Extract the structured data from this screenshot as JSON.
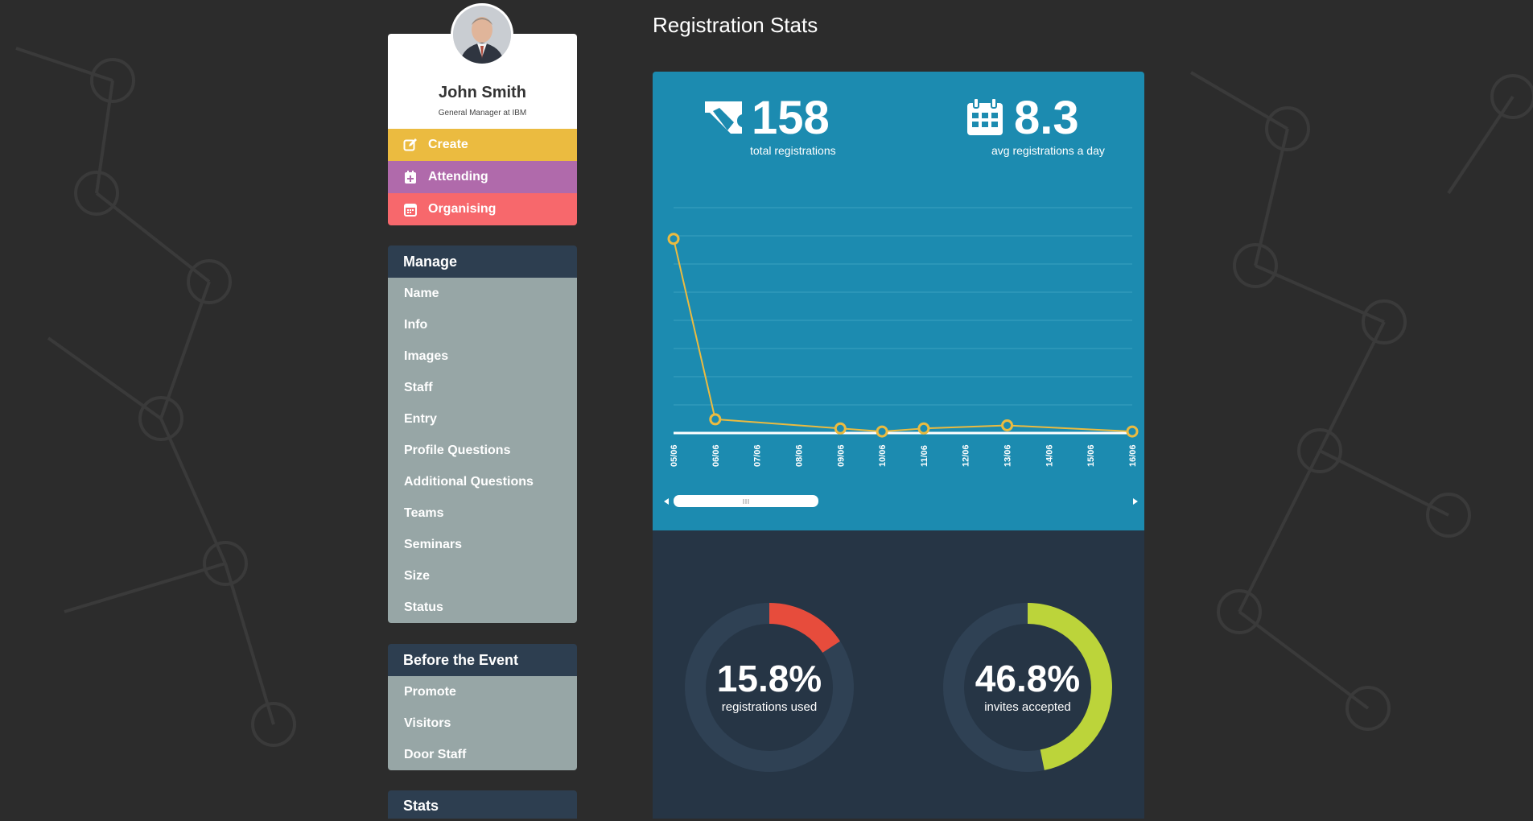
{
  "page": {
    "title": "Registration Stats"
  },
  "profile": {
    "name": "John Smith",
    "subtitle": "General Manager at IBM"
  },
  "actions": [
    {
      "label": "Create",
      "icon": "edit-icon",
      "color": "#ebbb40"
    },
    {
      "label": "Attending",
      "icon": "calendar-plus-icon",
      "color": "#b06aab"
    },
    {
      "label": "Organising",
      "icon": "calendar-icon",
      "color": "#f7686c"
    }
  ],
  "menus": {
    "manage": {
      "title": "Manage",
      "items": [
        "Name",
        "Info",
        "Images",
        "Staff",
        "Entry",
        "Profile Questions",
        "Additional Questions",
        "Teams",
        "Seminars",
        "Size",
        "Status"
      ]
    },
    "before_event": {
      "title": "Before the Event",
      "items": [
        "Promote",
        "Visitors",
        "Door Staff"
      ]
    },
    "stats": {
      "title": "Stats"
    }
  },
  "stats": {
    "total_registrations": {
      "value": "158",
      "label": "total registrations",
      "icon": "ticket-icon"
    },
    "avg_per_day": {
      "value": "8.3",
      "label": "avg registrations a day",
      "icon": "calendar-icon"
    }
  },
  "chart_data": {
    "type": "line",
    "categories": [
      "05/06",
      "06/06",
      "07/06",
      "08/06",
      "09/06",
      "10/06",
      "11/06",
      "12/06",
      "13/06",
      "14/06",
      "15/06",
      "16/06"
    ],
    "series": [
      {
        "values": [
          127,
          9,
          null,
          null,
          3,
          1,
          3,
          null,
          5,
          null,
          null,
          1
        ]
      }
    ],
    "ylim": [
      0,
      140
    ],
    "grid": true,
    "colors": {
      "line": "#ebbb40",
      "axis": "#ffffff",
      "grid": "#3aa0c0"
    }
  },
  "donuts": [
    {
      "value": "15.8%",
      "label": "registrations used",
      "fraction": 0.158,
      "color": "#e74c3c"
    },
    {
      "value": "46.8%",
      "label": "invites accepted",
      "fraction": 0.468,
      "color": "#bcd43a"
    }
  ],
  "colors": {
    "panel": "#1c8bb0",
    "dark_panel": "#263545",
    "menu": "#97a6a6",
    "menu_header": "#2d3e50"
  }
}
